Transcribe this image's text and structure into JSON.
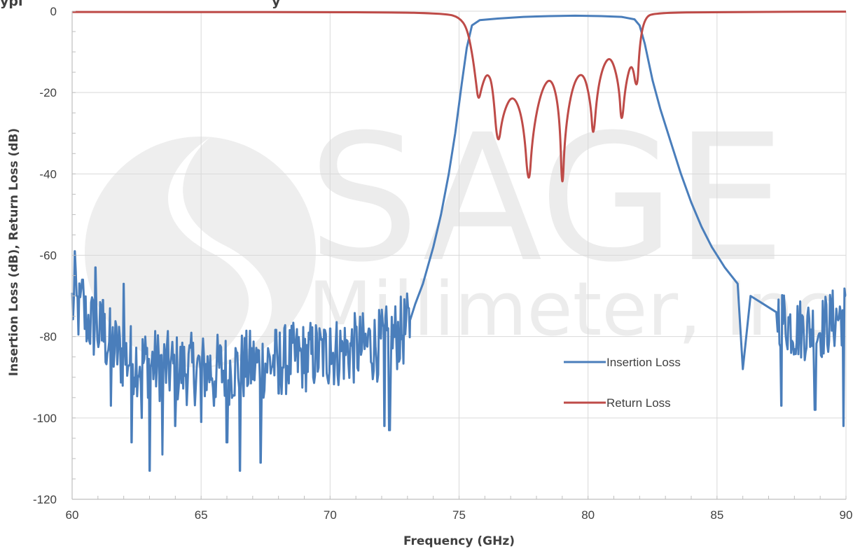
{
  "chart_data": {
    "type": "line",
    "title_fragment": "ypi",
    "title_fragment2": "y",
    "xlabel": "Frequency (GHz)",
    "ylabel": "Insertion Loss (dB), Return Loss (dB)",
    "xlim": [
      60,
      90
    ],
    "ylim": [
      -120,
      0
    ],
    "x_ticks": [
      60,
      65,
      70,
      75,
      80,
      85,
      90
    ],
    "y_ticks": [
      0,
      -20,
      -40,
      -60,
      -80,
      -100,
      -120
    ],
    "grid": true,
    "legend_placement": "lower-right",
    "watermark": {
      "main": "SAGE",
      "sub": "Millimeter, Inc"
    },
    "series": [
      {
        "name": "Insertion Loss",
        "color": "#4a7ebb",
        "noise_floor": [
          [
            60,
            -72
          ],
          [
            62,
            -85
          ],
          [
            64,
            -88
          ],
          [
            66,
            -88
          ],
          [
            68,
            -86
          ],
          [
            70,
            -84
          ],
          [
            72,
            -82
          ],
          [
            73,
            -78
          ]
        ],
        "points": [
          [
            73.1,
            -76
          ],
          [
            73.3,
            -72
          ],
          [
            73.6,
            -67
          ],
          [
            74.0,
            -58
          ],
          [
            74.3,
            -50
          ],
          [
            74.6,
            -40
          ],
          [
            74.85,
            -30
          ],
          [
            75.1,
            -18
          ],
          [
            75.3,
            -9
          ],
          [
            75.5,
            -3.5
          ],
          [
            75.8,
            -2.2
          ],
          [
            76.5,
            -1.8
          ],
          [
            77.5,
            -1.4
          ],
          [
            78.5,
            -1.2
          ],
          [
            79.5,
            -1.1
          ],
          [
            80.5,
            -1.2
          ],
          [
            81.3,
            -1.4
          ],
          [
            81.8,
            -2.0
          ],
          [
            82.0,
            -3.5
          ],
          [
            82.2,
            -8
          ],
          [
            82.5,
            -17
          ],
          [
            82.8,
            -24
          ],
          [
            83.2,
            -32
          ],
          [
            83.6,
            -40
          ],
          [
            84.0,
            -47
          ],
          [
            84.4,
            -53
          ],
          [
            84.8,
            -58
          ],
          [
            85.3,
            -63
          ],
          [
            85.8,
            -67
          ],
          [
            86.3,
            -70
          ],
          [
            86.8,
            -72
          ],
          [
            87.3,
            -74
          ]
        ],
        "noise_floor_tail": [
          [
            87.3,
            -74
          ],
          [
            88,
            -78
          ],
          [
            89,
            -78
          ],
          [
            90,
            -74
          ]
        ],
        "spikes": [
          [
            60.1,
            -59
          ],
          [
            60.4,
            -66
          ],
          [
            60.6,
            -80
          ],
          [
            60.9,
            -63
          ],
          [
            61.2,
            -71
          ],
          [
            61.5,
            -97
          ],
          [
            62.0,
            -67
          ],
          [
            62.3,
            -106
          ],
          [
            62.7,
            -100
          ],
          [
            63.0,
            -113
          ],
          [
            63.5,
            -109
          ],
          [
            64.0,
            -102
          ],
          [
            65.0,
            -101
          ],
          [
            65.5,
            -97
          ],
          [
            66.0,
            -106
          ],
          [
            66.5,
            -113
          ],
          [
            67.3,
            -111
          ],
          [
            68.0,
            -94
          ],
          [
            69.0,
            -89
          ],
          [
            70.0,
            -78
          ],
          [
            71.5,
            -78
          ],
          [
            72.1,
            -102
          ],
          [
            72.3,
            -103
          ],
          [
            86.0,
            -88
          ],
          [
            87.5,
            -97
          ],
          [
            88.8,
            -98
          ],
          [
            89.9,
            -102
          ],
          [
            90.0,
            -70
          ]
        ]
      },
      {
        "name": "Return Loss",
        "color": "#be4b48",
        "points": [
          [
            60,
            -0.2
          ],
          [
            72,
            -0.2
          ],
          [
            74.5,
            -0.6
          ],
          [
            75.0,
            -1.5
          ],
          [
            75.3,
            -4
          ],
          [
            75.5,
            -10
          ],
          [
            75.65,
            -17
          ],
          [
            75.75,
            -22.5
          ],
          [
            75.9,
            -18
          ],
          [
            76.1,
            -15
          ],
          [
            76.3,
            -18
          ],
          [
            76.5,
            -34.5
          ],
          [
            76.7,
            -25
          ],
          [
            77.1,
            -20
          ],
          [
            77.5,
            -27
          ],
          [
            77.7,
            -45
          ],
          [
            77.85,
            -30
          ],
          [
            78.2,
            -19
          ],
          [
            78.6,
            -16
          ],
          [
            78.9,
            -25
          ],
          [
            79.0,
            -46.5
          ],
          [
            79.1,
            -30
          ],
          [
            79.4,
            -18
          ],
          [
            79.8,
            -14.5
          ],
          [
            80.1,
            -22
          ],
          [
            80.2,
            -32.5
          ],
          [
            80.35,
            -20
          ],
          [
            80.6,
            -13
          ],
          [
            80.9,
            -11
          ],
          [
            81.2,
            -18
          ],
          [
            81.3,
            -29
          ],
          [
            81.45,
            -18
          ],
          [
            81.7,
            -12
          ],
          [
            81.9,
            -20.5
          ],
          [
            82.0,
            -8
          ],
          [
            82.2,
            -1.5
          ],
          [
            82.6,
            -0.4
          ],
          [
            85,
            -0.2
          ],
          [
            90,
            -0.1
          ]
        ]
      }
    ]
  }
}
